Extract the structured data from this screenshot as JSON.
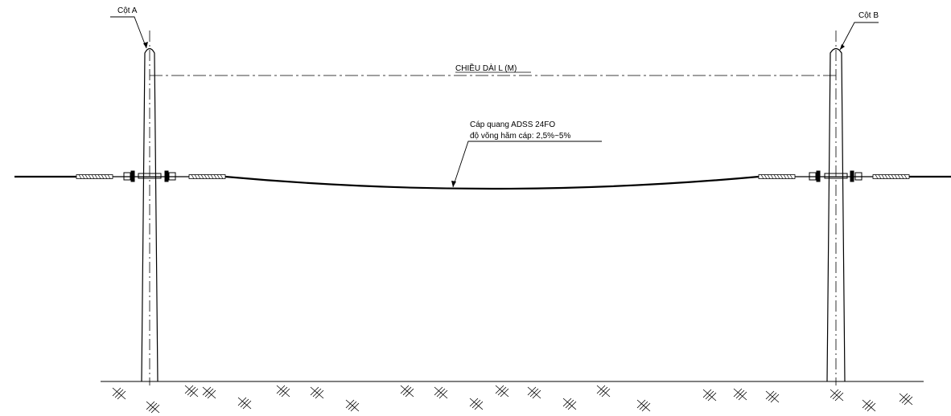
{
  "pole_a": {
    "label": "Cột A"
  },
  "pole_b": {
    "label": "Cột B"
  },
  "span": {
    "label": "CHIỀU DÀI L (M)"
  },
  "cable": {
    "name": "Cáp quang ADSS 24FO",
    "sag_note": "độ võng hãm cáp: 2,5%~5%"
  },
  "colors": {
    "line": "#000000",
    "background": "#ffffff"
  }
}
